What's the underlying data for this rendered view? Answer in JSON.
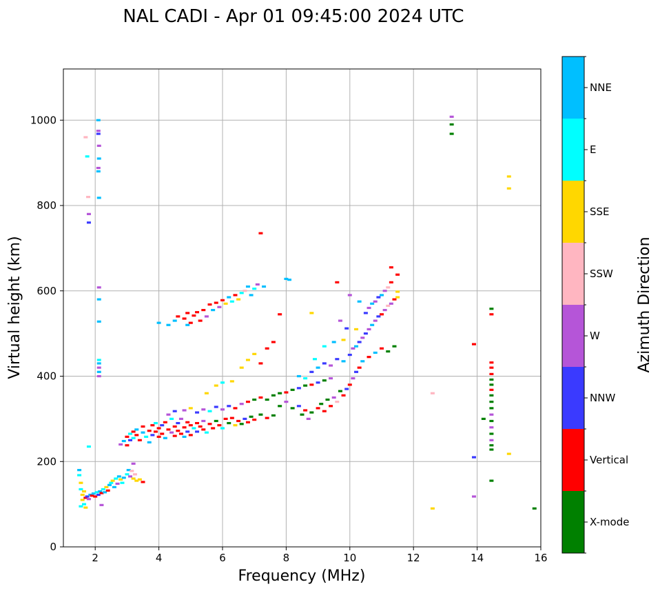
{
  "chart_data": {
    "type": "scatter",
    "title": "NAL CADI - Apr 01 09:45:00 2024 UTC",
    "xlabel": "Frequency (MHz)",
    "ylabel": "Virtual height (km)",
    "xlim": [
      1,
      16
    ],
    "ylim": [
      0,
      1120
    ],
    "xticks": [
      2,
      4,
      6,
      8,
      10,
      12,
      14,
      16
    ],
    "yticks": [
      0,
      200,
      400,
      600,
      800,
      1000
    ],
    "grid": true,
    "colorbar": {
      "label": "Azimuth Direction",
      "categories": [
        {
          "name": "X-mode",
          "color": "#008000"
        },
        {
          "name": "Vertical",
          "color": "#ff0000"
        },
        {
          "name": "NNW",
          "color": "#3a3aff"
        },
        {
          "name": "W",
          "color": "#b555d8"
        },
        {
          "name": "SSW",
          "color": "#ffb6c1"
        },
        {
          "name": "SSE",
          "color": "#ffd700"
        },
        {
          "name": "E",
          "color": "#00ffff"
        },
        {
          "name": "NNE",
          "color": "#00bfff"
        }
      ]
    },
    "points": [
      [
        1.5,
        180,
        "NNE"
      ],
      [
        1.5,
        168,
        "E"
      ],
      [
        1.55,
        150,
        "SSE"
      ],
      [
        1.55,
        135,
        "E"
      ],
      [
        1.6,
        122,
        "SSE"
      ],
      [
        1.6,
        110,
        "SSE"
      ],
      [
        1.65,
        100,
        "E"
      ],
      [
        1.7,
        92,
        "SSE"
      ],
      [
        1.7,
        115,
        "Vertical"
      ],
      [
        1.75,
        118,
        "NNW"
      ],
      [
        1.8,
        112,
        "W"
      ],
      [
        1.85,
        122,
        "NNE"
      ],
      [
        1.9,
        120,
        "Vertical"
      ],
      [
        1.95,
        125,
        "NNE"
      ],
      [
        2.0,
        118,
        "Vertical"
      ],
      [
        2.05,
        128,
        "E"
      ],
      [
        2.1,
        122,
        "NNW"
      ],
      [
        2.15,
        130,
        "NNE"
      ],
      [
        2.2,
        126,
        "Vertical"
      ],
      [
        2.25,
        135,
        "E"
      ],
      [
        2.3,
        128,
        "NNE"
      ],
      [
        2.35,
        140,
        "SSE"
      ],
      [
        2.4,
        132,
        "Vertical"
      ],
      [
        2.45,
        145,
        "NNE"
      ],
      [
        2.5,
        150,
        "E"
      ],
      [
        2.55,
        155,
        "SSE"
      ],
      [
        2.6,
        140,
        "NNE"
      ],
      [
        2.65,
        160,
        "E"
      ],
      [
        2.7,
        148,
        "W"
      ],
      [
        2.75,
        165,
        "NNE"
      ],
      [
        2.8,
        158,
        "SSE"
      ],
      [
        2.85,
        150,
        "E"
      ],
      [
        2.9,
        162,
        "NNE"
      ],
      [
        3.0,
        170,
        "E"
      ],
      [
        3.05,
        180,
        "NNE"
      ],
      [
        3.1,
        165,
        "W"
      ],
      [
        3.15,
        178,
        "SSW"
      ],
      [
        3.2,
        160,
        "SSE"
      ],
      [
        3.25,
        170,
        "SSW"
      ],
      [
        3.3,
        155,
        "SSE"
      ],
      [
        3.4,
        158,
        "SSE"
      ],
      [
        3.5,
        152,
        "Vertical"
      ],
      [
        3.2,
        195,
        "W"
      ],
      [
        1.55,
        95,
        "E"
      ],
      [
        1.65,
        130,
        "SSE"
      ],
      [
        1.7,
        960,
        "SSW"
      ],
      [
        1.75,
        915,
        "E"
      ],
      [
        1.78,
        820,
        "SSW"
      ],
      [
        1.8,
        780,
        "W"
      ],
      [
        1.8,
        760,
        "NNW"
      ],
      [
        2.1,
        1000,
        "NNE"
      ],
      [
        2.1,
        975,
        "W"
      ],
      [
        2.1,
        968,
        "NNW"
      ],
      [
        2.12,
        940,
        "W"
      ],
      [
        2.12,
        910,
        "NNE"
      ],
      [
        2.1,
        888,
        "W"
      ],
      [
        2.1,
        880,
        "NNE"
      ],
      [
        2.12,
        818,
        "NNE"
      ],
      [
        2.12,
        608,
        "W"
      ],
      [
        2.12,
        580,
        "NNE"
      ],
      [
        2.12,
        528,
        "NNE"
      ],
      [
        2.12,
        438,
        "E"
      ],
      [
        2.12,
        430,
        "NNE"
      ],
      [
        2.12,
        420,
        "W"
      ],
      [
        2.12,
        410,
        "NNE"
      ],
      [
        2.12,
        400,
        "W"
      ],
      [
        1.8,
        235,
        "E"
      ],
      [
        2.2,
        98,
        "W"
      ],
      [
        2.8,
        240,
        "W"
      ],
      [
        2.9,
        248,
        "NNE"
      ],
      [
        3.0,
        258,
        "Vertical"
      ],
      [
        3.0,
        238,
        "Vertical"
      ],
      [
        3.1,
        265,
        "E"
      ],
      [
        3.1,
        250,
        "NNW"
      ],
      [
        3.2,
        270,
        "Vertical"
      ],
      [
        3.2,
        255,
        "E"
      ],
      [
        3.3,
        262,
        "Vertical"
      ],
      [
        3.3,
        275,
        "NNE"
      ],
      [
        3.4,
        250,
        "Vertical"
      ],
      [
        3.5,
        268,
        "NNE"
      ],
      [
        3.5,
        282,
        "Vertical"
      ],
      [
        3.6,
        258,
        "E"
      ],
      [
        3.7,
        272,
        "Vertical"
      ],
      [
        3.7,
        245,
        "NNE"
      ],
      [
        3.8,
        285,
        "Vertical"
      ],
      [
        3.8,
        262,
        "NNW"
      ],
      [
        3.9,
        270,
        "Vertical"
      ],
      [
        3.9,
        290,
        "E"
      ],
      [
        4.0,
        258,
        "Vertical"
      ],
      [
        4.0,
        278,
        "Vertical"
      ],
      [
        4.1,
        285,
        "NNW"
      ],
      [
        4.1,
        265,
        "Vertical"
      ],
      [
        4.2,
        292,
        "Vertical"
      ],
      [
        4.2,
        255,
        "NNE"
      ],
      [
        4.3,
        275,
        "Vertical"
      ],
      [
        4.4,
        268,
        "W"
      ],
      [
        4.4,
        300,
        "E"
      ],
      [
        4.5,
        282,
        "Vertical"
      ],
      [
        4.5,
        260,
        "Vertical"
      ],
      [
        4.6,
        290,
        "NNW"
      ],
      [
        4.6,
        272,
        "Vertical"
      ],
      [
        4.7,
        265,
        "Vertical"
      ],
      [
        4.7,
        300,
        "W"
      ],
      [
        4.8,
        280,
        "Vertical"
      ],
      [
        4.8,
        258,
        "NNE"
      ],
      [
        4.9,
        292,
        "Vertical"
      ],
      [
        4.9,
        270,
        "NNW"
      ],
      [
        5.0,
        285,
        "Vertical"
      ],
      [
        5.0,
        262,
        "Vertical"
      ],
      [
        5.1,
        278,
        "E"
      ],
      [
        5.2,
        290,
        "Vertical"
      ],
      [
        5.2,
        270,
        "NNW"
      ],
      [
        5.3,
        282,
        "Vertical"
      ],
      [
        5.4,
        275,
        "Vertical"
      ],
      [
        5.4,
        295,
        "W"
      ],
      [
        5.5,
        268,
        "E"
      ],
      [
        5.6,
        288,
        "Vertical"
      ],
      [
        5.7,
        278,
        "Vertical"
      ],
      [
        5.8,
        295,
        "X-mode"
      ],
      [
        5.9,
        285,
        "Vertical"
      ],
      [
        6.0,
        278,
        "E"
      ],
      [
        6.1,
        300,
        "Vertical"
      ],
      [
        6.2,
        290,
        "X-mode"
      ],
      [
        6.3,
        302,
        "Vertical"
      ],
      [
        6.4,
        285,
        "SSE"
      ],
      [
        6.5,
        295,
        "Vertical"
      ],
      [
        6.6,
        288,
        "X-mode"
      ],
      [
        6.7,
        300,
        "NNW"
      ],
      [
        6.8,
        292,
        "Vertical"
      ],
      [
        6.9,
        305,
        "X-mode"
      ],
      [
        7.0,
        298,
        "Vertical"
      ],
      [
        7.2,
        310,
        "X-mode"
      ],
      [
        7.4,
        302,
        "Vertical"
      ],
      [
        7.6,
        308,
        "X-mode"
      ],
      [
        4.3,
        310,
        "W"
      ],
      [
        4.5,
        318,
        "NNW"
      ],
      [
        4.8,
        320,
        "W"
      ],
      [
        5.0,
        325,
        "SSE"
      ],
      [
        5.2,
        315,
        "NNW"
      ],
      [
        5.4,
        322,
        "W"
      ],
      [
        5.6,
        318,
        "E"
      ],
      [
        5.8,
        328,
        "NNW"
      ],
      [
        6.0,
        322,
        "W"
      ],
      [
        6.2,
        330,
        "NNW"
      ],
      [
        6.4,
        325,
        "Vertical"
      ],
      [
        6.6,
        335,
        "W"
      ],
      [
        6.8,
        340,
        "Vertical"
      ],
      [
        7.0,
        345,
        "X-mode"
      ],
      [
        7.2,
        350,
        "Vertical"
      ],
      [
        7.4,
        345,
        "X-mode"
      ],
      [
        7.6,
        355,
        "X-mode"
      ],
      [
        7.8,
        360,
        "X-mode"
      ],
      [
        8.0,
        362,
        "Vertical"
      ],
      [
        8.2,
        368,
        "X-mode"
      ],
      [
        8.4,
        372,
        "NNW"
      ],
      [
        8.6,
        378,
        "X-mode"
      ],
      [
        8.8,
        380,
        "Vertical"
      ],
      [
        9.0,
        385,
        "NNW"
      ],
      [
        9.2,
        390,
        "X-mode"
      ],
      [
        9.4,
        395,
        "W"
      ],
      [
        5.5,
        360,
        "SSE"
      ],
      [
        5.8,
        378,
        "SSE"
      ],
      [
        6.0,
        385,
        "E"
      ],
      [
        6.3,
        388,
        "SSE"
      ],
      [
        6.6,
        420,
        "SSE"
      ],
      [
        6.8,
        438,
        "SSE"
      ],
      [
        7.0,
        452,
        "SSE"
      ],
      [
        7.2,
        430,
        "Vertical"
      ],
      [
        7.4,
        465,
        "Vertical"
      ],
      [
        7.6,
        480,
        "Vertical"
      ],
      [
        7.8,
        545,
        "Vertical"
      ],
      [
        7.2,
        735,
        "Vertical"
      ],
      [
        8.0,
        628,
        "NNE"
      ],
      [
        8.1,
        626,
        "NNE"
      ],
      [
        7.8,
        330,
        "X-mode"
      ],
      [
        8.0,
        340,
        "W"
      ],
      [
        8.2,
        325,
        "X-mode"
      ],
      [
        8.4,
        330,
        "NNW"
      ],
      [
        8.5,
        310,
        "X-mode"
      ],
      [
        8.6,
        320,
        "Vertical"
      ],
      [
        8.7,
        300,
        "W"
      ],
      [
        8.8,
        315,
        "X-mode"
      ],
      [
        9.0,
        325,
        "Vertical"
      ],
      [
        9.1,
        335,
        "X-mode"
      ],
      [
        9.2,
        318,
        "Vertical"
      ],
      [
        9.3,
        345,
        "X-mode"
      ],
      [
        9.4,
        330,
        "Vertical"
      ],
      [
        9.5,
        350,
        "W"
      ],
      [
        9.6,
        340,
        "SSW"
      ],
      [
        9.7,
        365,
        "X-mode"
      ],
      [
        9.8,
        355,
        "Vertical"
      ],
      [
        9.9,
        370,
        "NNW"
      ],
      [
        10.0,
        380,
        "Vertical"
      ],
      [
        10.1,
        395,
        "W"
      ],
      [
        10.2,
        410,
        "NNW"
      ],
      [
        10.3,
        420,
        "Vertical"
      ],
      [
        10.4,
        435,
        "NNE"
      ],
      [
        8.4,
        400,
        "NNE"
      ],
      [
        8.6,
        395,
        "E"
      ],
      [
        8.8,
        410,
        "NNW"
      ],
      [
        9.0,
        420,
        "NNE"
      ],
      [
        9.2,
        430,
        "NNW"
      ],
      [
        9.4,
        425,
        "W"
      ],
      [
        9.6,
        440,
        "NNW"
      ],
      [
        9.8,
        435,
        "NNE"
      ],
      [
        10.0,
        450,
        "NNW"
      ],
      [
        10.1,
        465,
        "W"
      ],
      [
        10.2,
        470,
        "NNE"
      ],
      [
        10.3,
        480,
        "NNW"
      ],
      [
        10.4,
        490,
        "W"
      ],
      [
        10.5,
        500,
        "NNW"
      ],
      [
        10.6,
        510,
        "W"
      ],
      [
        10.7,
        520,
        "NNE"
      ],
      [
        10.8,
        530,
        "W"
      ],
      [
        10.9,
        540,
        "NNW"
      ],
      [
        11.0,
        545,
        "Vertical"
      ],
      [
        11.1,
        555,
        "W"
      ],
      [
        11.2,
        565,
        "SSW"
      ],
      [
        11.3,
        570,
        "W"
      ],
      [
        11.4,
        580,
        "Vertical"
      ],
      [
        11.5,
        585,
        "SSE"
      ],
      [
        10.5,
        548,
        "NNW"
      ],
      [
        10.6,
        560,
        "W"
      ],
      [
        10.7,
        570,
        "NNE"
      ],
      [
        10.8,
        575,
        "W"
      ],
      [
        10.9,
        585,
        "NNW"
      ],
      [
        11.0,
        590,
        "NNE"
      ],
      [
        11.1,
        600,
        "W"
      ],
      [
        11.2,
        608,
        "SSW"
      ],
      [
        11.3,
        620,
        "Vertical"
      ],
      [
        11.5,
        638,
        "Vertical"
      ],
      [
        11.3,
        655,
        "Vertical"
      ],
      [
        11.5,
        598,
        "SSE"
      ],
      [
        11.4,
        470,
        "X-mode"
      ],
      [
        11.2,
        458,
        "X-mode"
      ],
      [
        11.0,
        465,
        "Vertical"
      ],
      [
        10.8,
        455,
        "NNE"
      ],
      [
        10.6,
        445,
        "Vertical"
      ],
      [
        10.3,
        575,
        "NNE"
      ],
      [
        10.2,
        510,
        "SSE"
      ],
      [
        10.0,
        590,
        "W"
      ],
      [
        9.9,
        512,
        "NNW"
      ],
      [
        9.7,
        530,
        "W"
      ],
      [
        9.6,
        620,
        "Vertical"
      ],
      [
        8.8,
        548,
        "SSE"
      ],
      [
        8.9,
        440,
        "E"
      ],
      [
        9.2,
        470,
        "E"
      ],
      [
        9.5,
        480,
        "NNE"
      ],
      [
        9.8,
        485,
        "SSE"
      ],
      [
        4.0,
        525,
        "NNE"
      ],
      [
        4.3,
        520,
        "NNE"
      ],
      [
        4.5,
        530,
        "NNE"
      ],
      [
        4.6,
        540,
        "Vertical"
      ],
      [
        4.8,
        535,
        "Vertical"
      ],
      [
        4.9,
        548,
        "Vertical"
      ],
      [
        5.0,
        525,
        "Vertical"
      ],
      [
        5.1,
        542,
        "Vertical"
      ],
      [
        5.2,
        550,
        "Vertical"
      ],
      [
        5.3,
        530,
        "Vertical"
      ],
      [
        5.4,
        555,
        "Vertical"
      ],
      [
        5.5,
        540,
        "W"
      ],
      [
        5.6,
        568,
        "Vertical"
      ],
      [
        5.7,
        555,
        "NNE"
      ],
      [
        5.8,
        572,
        "Vertical"
      ],
      [
        5.9,
        562,
        "W"
      ],
      [
        6.0,
        578,
        "Vertical"
      ],
      [
        6.1,
        570,
        "SSE"
      ],
      [
        6.2,
        585,
        "NNE"
      ],
      [
        6.3,
        575,
        "E"
      ],
      [
        6.4,
        590,
        "Vertical"
      ],
      [
        6.5,
        580,
        "SSE"
      ],
      [
        6.6,
        595,
        "E"
      ],
      [
        6.7,
        600,
        "SSW"
      ],
      [
        6.8,
        610,
        "NNE"
      ],
      [
        6.9,
        590,
        "NNE"
      ],
      [
        7.0,
        605,
        "E"
      ],
      [
        7.1,
        615,
        "W"
      ],
      [
        7.3,
        610,
        "NNE"
      ],
      [
        4.9,
        520,
        "NNE"
      ],
      [
        12.6,
        360,
        "SSW"
      ],
      [
        12.6,
        90,
        "SSE"
      ],
      [
        13.2,
        1008,
        "W"
      ],
      [
        13.2,
        990,
        "X-mode"
      ],
      [
        13.2,
        968,
        "X-mode"
      ],
      [
        13.9,
        475,
        "Vertical"
      ],
      [
        13.9,
        210,
        "NNW"
      ],
      [
        13.9,
        118,
        "W"
      ],
      [
        14.2,
        300,
        "X-mode"
      ],
      [
        14.45,
        558,
        "X-mode"
      ],
      [
        14.45,
        545,
        "Vertical"
      ],
      [
        14.45,
        432,
        "Vertical"
      ],
      [
        14.45,
        420,
        "Vertical"
      ],
      [
        14.45,
        405,
        "Vertical"
      ],
      [
        14.45,
        392,
        "X-mode"
      ],
      [
        14.45,
        380,
        "X-mode"
      ],
      [
        14.45,
        368,
        "Vertical"
      ],
      [
        14.45,
        355,
        "X-mode"
      ],
      [
        14.45,
        340,
        "X-mode"
      ],
      [
        14.45,
        325,
        "X-mode"
      ],
      [
        14.45,
        310,
        "W"
      ],
      [
        14.45,
        295,
        "X-mode"
      ],
      [
        14.45,
        280,
        "W"
      ],
      [
        14.45,
        265,
        "X-mode"
      ],
      [
        14.45,
        250,
        "W"
      ],
      [
        14.45,
        238,
        "X-mode"
      ],
      [
        14.45,
        228,
        "X-mode"
      ],
      [
        14.45,
        155,
        "X-mode"
      ],
      [
        15.0,
        868,
        "SSE"
      ],
      [
        15.0,
        840,
        "SSE"
      ],
      [
        15.0,
        218,
        "SSE"
      ],
      [
        15.8,
        90,
        "X-mode"
      ]
    ]
  }
}
